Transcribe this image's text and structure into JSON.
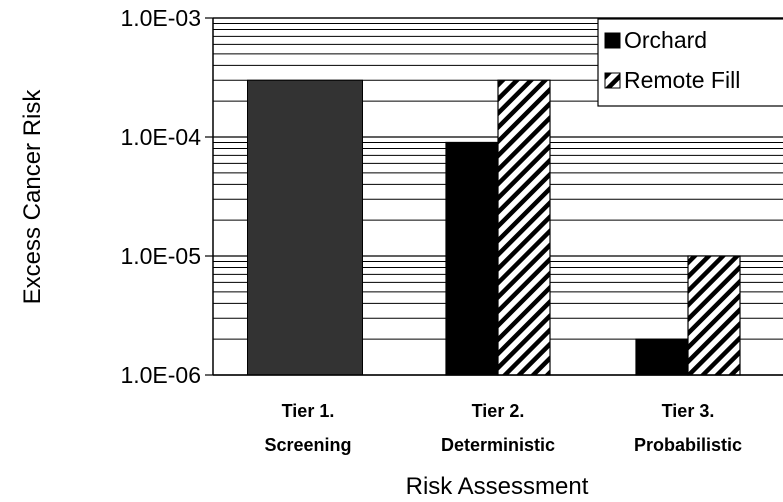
{
  "chart_data": {
    "type": "bar",
    "ylabel": "Excess Cancer Risk",
    "xlabel": "Risk Assessment",
    "yscale": "log",
    "ylim": [
      1e-06,
      0.001
    ],
    "y_ticks": [
      "1.0E-06",
      "1.0E-05",
      "1.0E-04",
      "1.0E-03"
    ],
    "y_tick_values": [
      1e-06,
      1e-05,
      0.0001,
      0.001
    ],
    "grid": "horizontal minor and major",
    "legend": {
      "placement": "top-right",
      "entries": [
        {
          "label": "Orchard",
          "style": "solid-black"
        },
        {
          "label": "Remote Fill",
          "style": "diagonal-hatch"
        }
      ]
    },
    "categories": [
      {
        "line1": "Tier 1.",
        "line2": "Screening"
      },
      {
        "line1": "Tier 2.",
        "line2": "Deterministic"
      },
      {
        "line1": "Tier 3.",
        "line2": "Probabilistic"
      }
    ],
    "bars": [
      {
        "category": 0,
        "series": "Combined",
        "value": 0.0003,
        "fill": "#333333"
      },
      {
        "category": 1,
        "series": "Orchard",
        "value": 9e-05,
        "fill": "#000000"
      },
      {
        "category": 1,
        "series": "Remote Fill",
        "value": 0.0003,
        "fill": "hatch"
      },
      {
        "category": 2,
        "series": "Orchard",
        "value": 2e-06,
        "fill": "#000000"
      },
      {
        "category": 2,
        "series": "Remote Fill",
        "value": 1e-05,
        "fill": "hatch"
      }
    ]
  }
}
